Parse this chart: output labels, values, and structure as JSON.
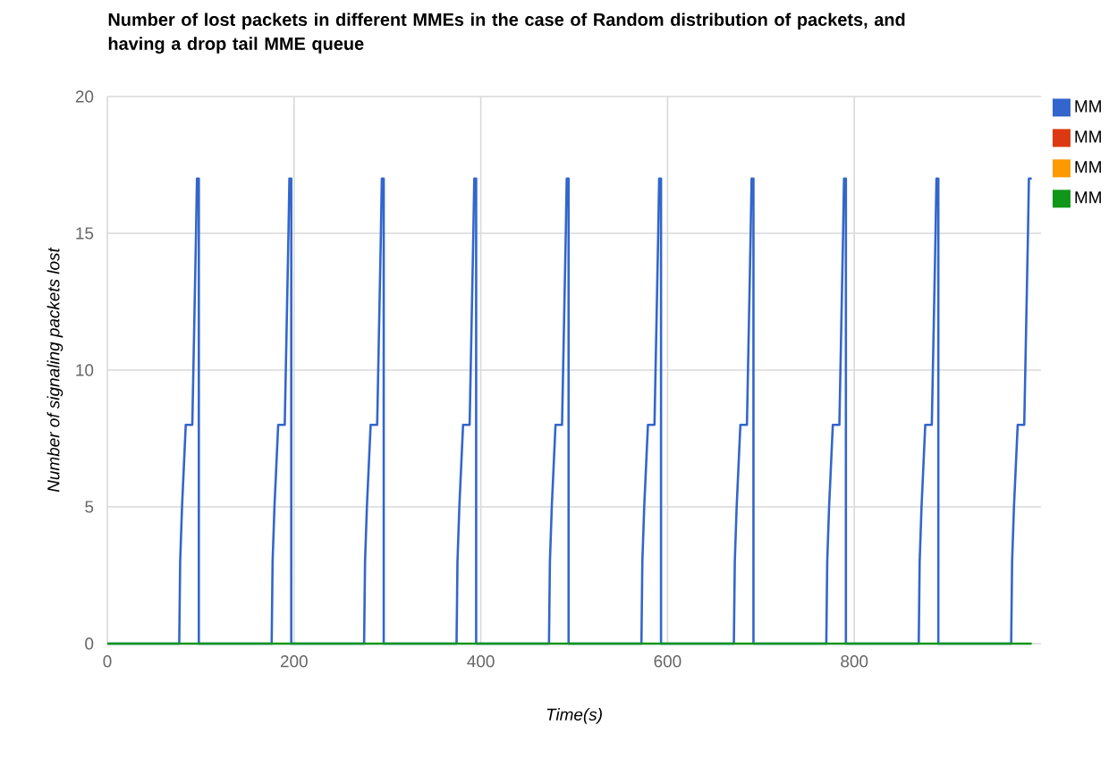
{
  "chart_data": {
    "type": "line",
    "title": "Number of lost packets in different MMEs in the case of Random distribution of packets, and having a drop tail MME queue",
    "xlabel": "Time(s)",
    "ylabel": "Number of signaling packets lost",
    "xlim": [
      0,
      1000
    ],
    "xticks": [
      0,
      200,
      400,
      600,
      800
    ],
    "ylim": [
      0,
      20
    ],
    "yticks": [
      0,
      5,
      10,
      15,
      20
    ],
    "grid": true,
    "legend": "right",
    "marker": "none",
    "line_style": "solid",
    "series": [
      {
        "name": "MM",
        "color": "#3366cc",
        "x": [
          0,
          77,
          78,
          80,
          84,
          91,
          95,
          96,
          98,
          98,
          176,
          177,
          179,
          183,
          190,
          194,
          195,
          197,
          197,
          275,
          276,
          278,
          282,
          289,
          293,
          294,
          296,
          296,
          374,
          375,
          377,
          381,
          388,
          392,
          393,
          395,
          395,
          473,
          474,
          476,
          480,
          487,
          491,
          492,
          494,
          494,
          572,
          573,
          575,
          579,
          586,
          590,
          591,
          593,
          593,
          671,
          672,
          674,
          678,
          685,
          689,
          690,
          692,
          692,
          770,
          771,
          773,
          777,
          784,
          788,
          789,
          791,
          791,
          869,
          870,
          872,
          876,
          883,
          887,
          888,
          890,
          890,
          968,
          969,
          971,
          975,
          982,
          986,
          987,
          990
        ],
        "values": [
          0,
          0,
          3,
          5,
          8,
          8,
          15,
          17,
          17,
          0,
          0,
          3,
          5,
          8,
          8,
          15,
          17,
          17,
          0,
          0,
          3,
          5,
          8,
          8,
          15,
          17,
          17,
          0,
          0,
          3,
          5,
          8,
          8,
          15,
          17,
          17,
          0,
          0,
          3,
          5,
          8,
          8,
          15,
          17,
          17,
          0,
          0,
          3,
          5,
          8,
          8,
          15,
          17,
          17,
          0,
          0,
          3,
          5,
          8,
          8,
          15,
          17,
          17,
          0,
          0,
          3,
          5,
          8,
          8,
          15,
          17,
          17,
          0,
          0,
          3,
          5,
          8,
          8,
          15,
          17,
          17,
          0,
          0,
          3,
          5,
          8,
          8,
          15,
          17,
          17
        ]
      },
      {
        "name": "MM",
        "color": "#dc3912"
      },
      {
        "name": "MM",
        "color": "#ff9900"
      },
      {
        "name": "MM",
        "color": "#109618",
        "x": [
          0,
          990
        ],
        "values": [
          0,
          0
        ]
      }
    ]
  }
}
